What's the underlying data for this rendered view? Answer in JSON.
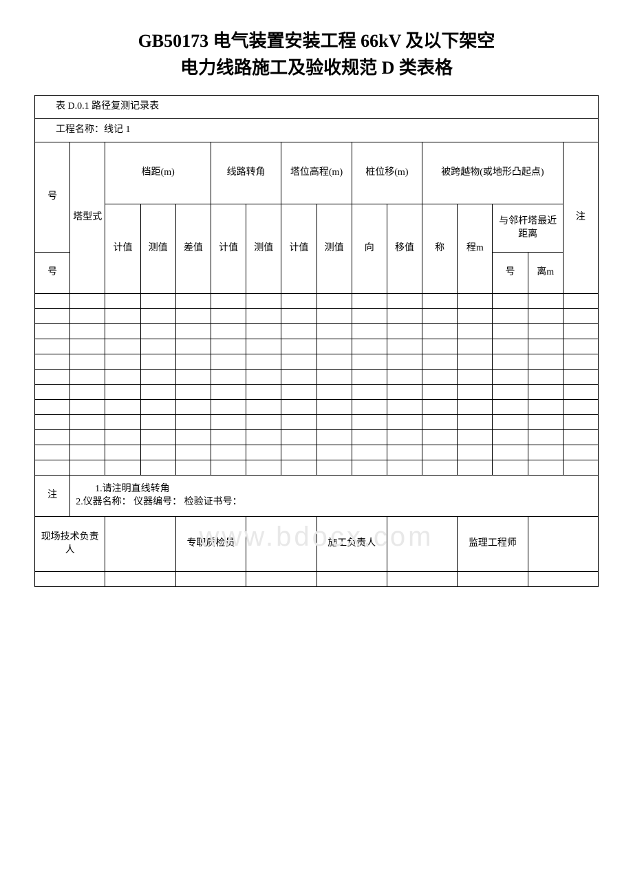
{
  "title_line1": "GB50173 电气装置安装工程 66kV 及以下架空",
  "title_line2": "电力线路施工及验收规范 D 类表格",
  "table_caption": "表 D.0.1 路径复测记录表",
  "project_label": "工程名称：",
  "project_value": "线记 1",
  "headers": {
    "hao1": "号",
    "hao2": "号",
    "tower_type": "塔型式",
    "span": "档距(m)",
    "line_angle": "线路转角",
    "tower_elev": "塔位高程(m)",
    "pile_shift": "桩位移(m)",
    "cross_obj": "被跨越物(或地形凸起点)",
    "note": "注",
    "calc": "计值",
    "meas": "测值",
    "diff": "差值",
    "dir": "向",
    "shift": "移值",
    "name": "称",
    "elev_m": "程m",
    "near_dist": "与邻杆塔最近距离",
    "sub_hao": "号",
    "sub_dist_m": "离m"
  },
  "note_row_label": "注",
  "note_row_text": "　　1.请注明直线转角\n2.仪器名称：  仪器编号：  检验证书号：",
  "sign": {
    "site_lead": "现场技术负责人",
    "qc": "专职质检员",
    "const_lead": "施工负责人",
    "supervisor": "监理工程师"
  },
  "watermark": "www.bdocx.com",
  "empty_rows": 12
}
